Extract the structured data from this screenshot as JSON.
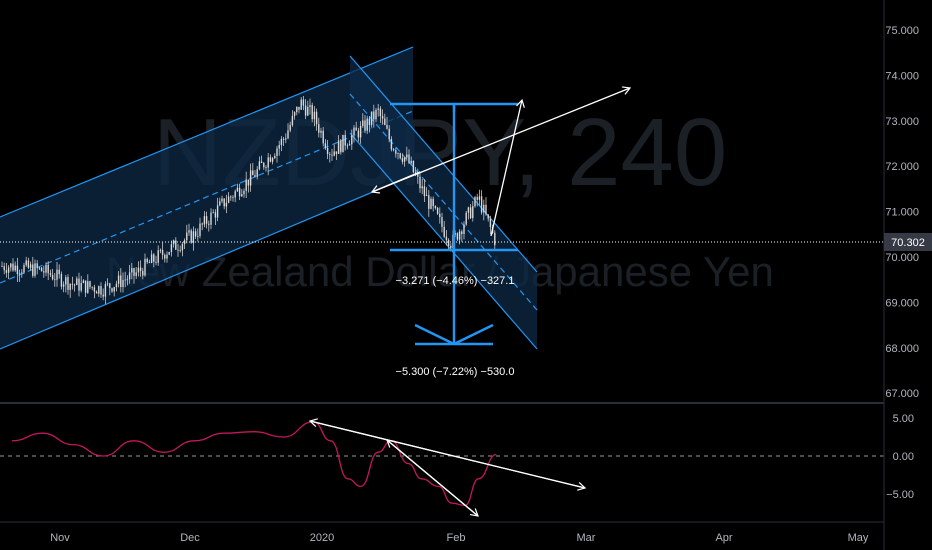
{
  "watermark": {
    "symbol": "NZDJPY, 240",
    "description": "New Zealand Dollar / Japanese Yen"
  },
  "colors": {
    "background": "#000000",
    "candle": "#c8c8c8",
    "channel_line": "#2196f3",
    "channel_fill": "#0d2a45",
    "arrow": "#ffffff",
    "measure": "#2196f3",
    "oscillator": "#c2185b",
    "axis_text": "#b2b5be",
    "grid_border": "#2a2e39"
  },
  "chart_data": [
    {
      "type": "line",
      "name": "price_pane",
      "y_axis_ticks": [
        "75.000",
        "74.000",
        "73.000",
        "72.000",
        "71.000",
        "70.000",
        "69.000",
        "68.000",
        "67.000"
      ],
      "ylim": [
        66.7,
        75.6
      ],
      "last_price": "70.302",
      "x_axis_ticks": [
        "Nov",
        "Dec",
        "2020",
        "Feb",
        "Mar",
        "Apr",
        "May"
      ],
      "x": [
        "2019-10-21",
        "2019-10-28",
        "2019-11-04",
        "2019-11-11",
        "2019-11-18",
        "2019-11-25",
        "2019-12-02",
        "2019-12-09",
        "2019-12-16",
        "2019-12-23",
        "2019-12-27",
        "2019-12-30",
        "2020-01-03",
        "2020-01-07",
        "2020-01-10",
        "2020-01-14",
        "2020-01-17",
        "2020-01-21",
        "2020-01-24",
        "2020-01-28",
        "2020-01-31",
        "2020-02-03",
        "2020-02-06",
        "2020-02-10"
      ],
      "values": [
        69.8,
        69.7,
        69.4,
        69.3,
        69.6,
        70.1,
        70.5,
        71.2,
        71.8,
        72.6,
        73.4,
        73.1,
        72.3,
        72.6,
        72.8,
        73.2,
        72.5,
        72.1,
        71.5,
        70.8,
        70.3,
        70.8,
        71.3,
        70.3
      ],
      "annotations": [
        "−3.271 (−4.46%) −327.1",
        "−5.300 (−7.22%) −530.0"
      ]
    },
    {
      "type": "line",
      "name": "oscillator_pane",
      "y_axis_ticks": [
        "5.00",
        "0.00",
        "−5.00"
      ],
      "ylim": [
        -7,
        6.5
      ],
      "x": [
        "2019-10-21",
        "2019-10-28",
        "2019-11-04",
        "2019-11-11",
        "2019-11-18",
        "2019-11-25",
        "2019-12-02",
        "2019-12-09",
        "2019-12-16",
        "2019-12-23",
        "2019-12-30",
        "2020-01-03",
        "2020-01-07",
        "2020-01-10",
        "2020-01-14",
        "2020-01-17",
        "2020-01-21",
        "2020-01-24",
        "2020-01-28",
        "2020-01-31",
        "2020-02-03",
        "2020-02-06",
        "2020-02-10"
      ],
      "values": [
        2.0,
        3.0,
        1.5,
        0.0,
        2.0,
        0.5,
        2.0,
        3.0,
        3.2,
        2.5,
        4.5,
        2.0,
        -3.0,
        -4.0,
        0.5,
        2.0,
        -1.0,
        -3.0,
        -4.0,
        -6.2,
        -6.5,
        -3.0,
        0.2
      ]
    }
  ]
}
